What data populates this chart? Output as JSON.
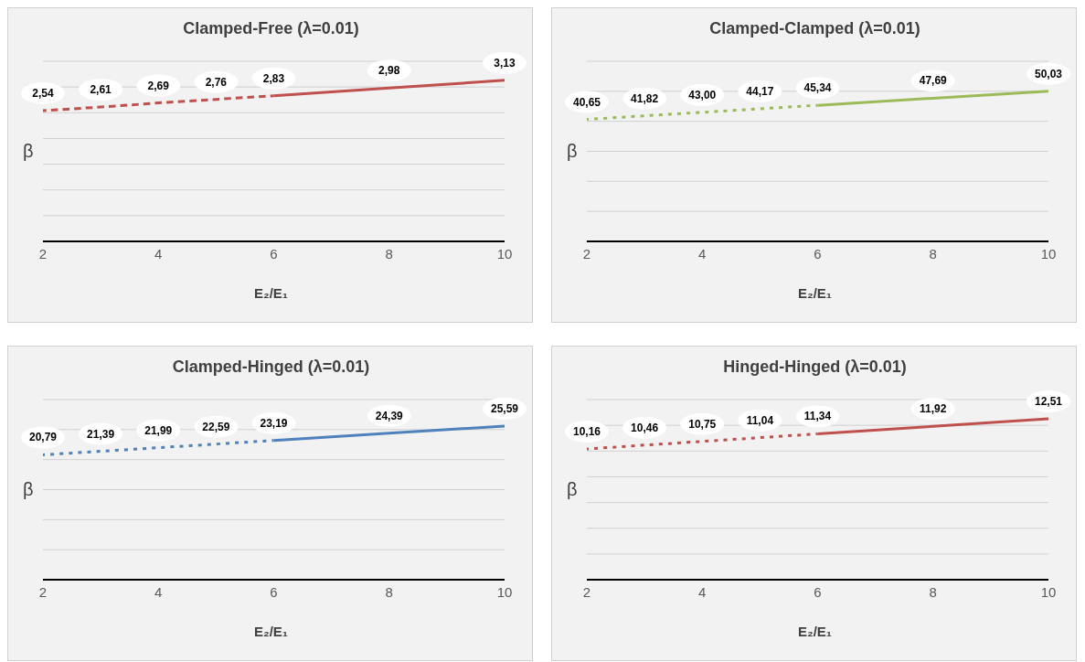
{
  "chart_data": [
    {
      "type": "line",
      "title": "Clamped-Free (λ=0.01)",
      "xlabel": "E₂/E₁",
      "ylabel": "β",
      "xlim": [
        2,
        10
      ],
      "xticks": [
        2,
        4,
        6,
        8,
        10
      ],
      "ylim": [
        0,
        3.5
      ],
      "yticks": [
        {
          "value": 0,
          "label": null
        },
        {
          "value": 0.5,
          "label": null
        },
        {
          "value": 1,
          "label": null
        },
        {
          "value": 1.5,
          "label": null
        },
        {
          "value": 2,
          "label": null
        },
        {
          "value": 2.5,
          "label": null
        },
        {
          "value": 3,
          "label": null
        },
        {
          "value": 3.5,
          "label": null
        }
      ],
      "tick_labels": "x",
      "grid": "y",
      "legend": false,
      "marker": "none",
      "series": [
        {
          "color": "#c0504d",
          "line_style": "dashed",
          "x": [
            2,
            3,
            4,
            5,
            6
          ],
          "values": [
            2.54,
            2.61,
            2.69,
            2.76,
            2.83
          ],
          "value_labels": [
            "2,54",
            "2,61",
            "2,69",
            "2,76",
            "2,83"
          ]
        },
        {
          "color": "#c0504d",
          "line_style": "solid",
          "x": [
            6,
            8,
            10
          ],
          "values": [
            2.83,
            2.98,
            3.13
          ],
          "value_labels": [
            null,
            "2,98",
            "3,13"
          ]
        }
      ]
    },
    {
      "type": "line",
      "title": "Clamped-Clamped (λ=0.01)",
      "xlabel": "E₂/E₁",
      "ylabel": "β",
      "xlim": [
        2,
        10
      ],
      "xticks": [
        2,
        4,
        6,
        8,
        10
      ],
      "ylim": [
        0,
        60
      ],
      "yticks": [
        {
          "value": 0,
          "label": null
        },
        {
          "value": 10,
          "label": null
        },
        {
          "value": 20,
          "label": null
        },
        {
          "value": 30,
          "label": null
        },
        {
          "value": 40,
          "label": null
        },
        {
          "value": 50,
          "label": null
        },
        {
          "value": 60,
          "label": null
        }
      ],
      "tick_labels": "x",
      "grid": "y",
      "legend": false,
      "marker": "none",
      "series": [
        {
          "color": "#9bbb59",
          "line_style": "dotted",
          "x": [
            2,
            3,
            4,
            5,
            6
          ],
          "values": [
            40.65,
            41.82,
            43.0,
            44.17,
            45.34
          ],
          "value_labels": [
            "40,65",
            "41,82",
            "43,00",
            "44,17",
            "45,34"
          ]
        },
        {
          "color": "#9bbb59",
          "line_style": "solid",
          "x": [
            6,
            8,
            10
          ],
          "values": [
            45.34,
            47.69,
            50.03
          ],
          "value_labels": [
            null,
            "47,69",
            "50,03"
          ]
        }
      ]
    },
    {
      "type": "line",
      "title": "Clamped-Hinged (λ=0.01)",
      "xlabel": "E₂/E₁",
      "ylabel": "β",
      "xlim": [
        2,
        10
      ],
      "xticks": [
        2,
        4,
        6,
        8,
        10
      ],
      "ylim": [
        0,
        30
      ],
      "yticks": [
        {
          "value": 0,
          "label": null
        },
        {
          "value": 5,
          "label": null
        },
        {
          "value": 10,
          "label": null
        },
        {
          "value": 15,
          "label": null
        },
        {
          "value": 20,
          "label": null
        },
        {
          "value": 25,
          "label": null
        },
        {
          "value": 30,
          "label": null
        }
      ],
      "tick_labels": "x",
      "grid": "y",
      "legend": false,
      "marker": "none",
      "series": [
        {
          "color": "#4f81bd",
          "line_style": "dotted",
          "x": [
            2,
            3,
            4,
            5,
            6
          ],
          "values": [
            20.79,
            21.39,
            21.99,
            22.59,
            23.19
          ],
          "value_labels": [
            "20,79",
            "21,39",
            "21,99",
            "22,59",
            "23,19"
          ]
        },
        {
          "color": "#4f81bd",
          "line_style": "solid",
          "x": [
            6,
            8,
            10
          ],
          "values": [
            23.19,
            24.39,
            25.59
          ],
          "value_labels": [
            null,
            "24,39",
            "25,59"
          ]
        }
      ]
    },
    {
      "type": "line",
      "title": "Hinged-Hinged (λ=0.01)",
      "xlabel": "E₂/E₁",
      "ylabel": "β",
      "xlim": [
        2,
        10
      ],
      "xticks": [
        2,
        4,
        6,
        8,
        10
      ],
      "ylim": [
        0,
        14
      ],
      "yticks": [
        {
          "value": 0,
          "label": null
        },
        {
          "value": 2,
          "label": null
        },
        {
          "value": 4,
          "label": null
        },
        {
          "value": 6,
          "label": null
        },
        {
          "value": 8,
          "label": null
        },
        {
          "value": 10,
          "label": null
        },
        {
          "value": 12,
          "label": null
        },
        {
          "value": 14,
          "label": null
        }
      ],
      "tick_labels": "x",
      "grid": "y",
      "legend": false,
      "marker": "none",
      "series": [
        {
          "color": "#c0504d",
          "line_style": "dotted",
          "x": [
            2,
            3,
            4,
            5,
            6
          ],
          "values": [
            10.16,
            10.46,
            10.75,
            11.04,
            11.34
          ],
          "value_labels": [
            "10,16",
            "10,46",
            "10,75",
            "11,04",
            "11,34"
          ]
        },
        {
          "color": "#c0504d",
          "line_style": "solid",
          "x": [
            6,
            8,
            10
          ],
          "values": [
            11.34,
            11.92,
            12.51
          ],
          "value_labels": [
            null,
            "11,92",
            "12,51"
          ]
        }
      ]
    }
  ]
}
